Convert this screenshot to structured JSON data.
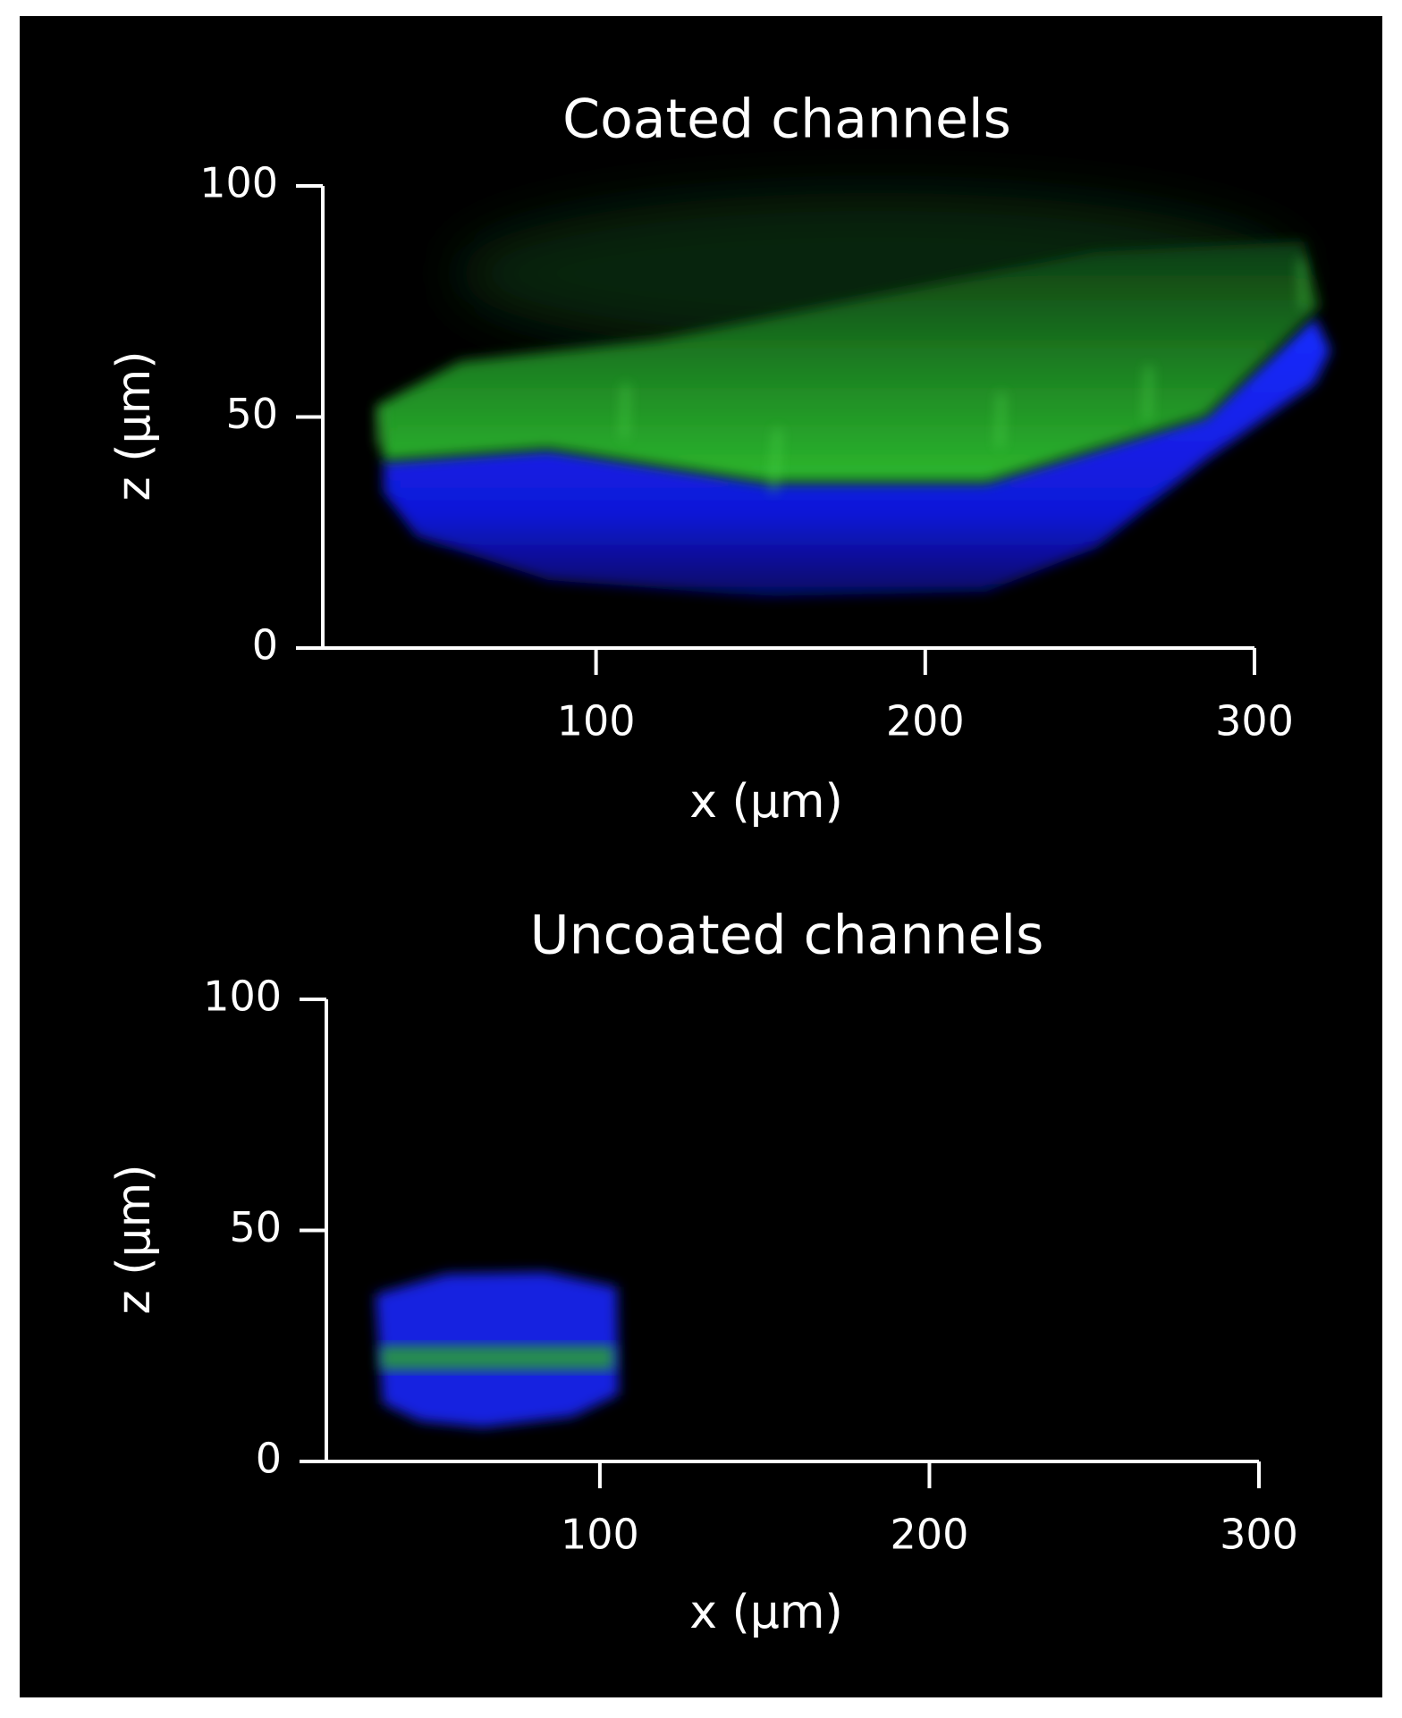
{
  "chart_data": [
    {
      "type": "image",
      "title": "Coated channels",
      "x_label": "x (µm)",
      "y_label": "z (µm)",
      "xlim": [
        17,
        300
      ],
      "ylim": [
        0,
        100
      ],
      "xticks": [
        100,
        200,
        300
      ],
      "yticks": [
        0,
        50,
        100
      ]
    },
    {
      "type": "image",
      "title": "Uncoated channels",
      "x_label": "x (µm)",
      "y_label": "z (µm)",
      "xlim": [
        17,
        300
      ],
      "ylim": [
        0,
        100
      ],
      "xticks": [
        100,
        200,
        300
      ],
      "yticks": [
        0,
        50,
        100
      ]
    }
  ]
}
